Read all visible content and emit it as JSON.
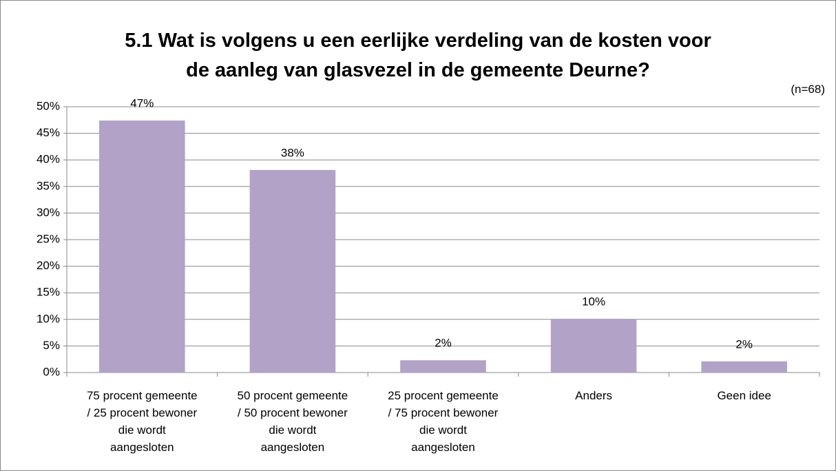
{
  "chart_data": {
    "type": "bar",
    "title": "5.1 Wat is volgens u een eerlijke verdeling van de kosten voor\nde aanleg van glasvezel in de gemeente Deurne?",
    "subtitle": "(n=68)",
    "categories": [
      "75 procent gemeente\n/ 25 procent bewoner\ndie wordt\naangesloten",
      "50 procent gemeente\n/ 50 procent bewoner\ndie wordt\naangesloten",
      "25 procent gemeente\n/ 75 procent bewoner\ndie wordt\naangesloten",
      "Anders",
      "Geen idee"
    ],
    "values": [
      47.4,
      38.1,
      2.3,
      10.1,
      2.1
    ],
    "value_labels": [
      "47%",
      "38%",
      "2%",
      "10%",
      "2%"
    ],
    "color": "#b2a2c7",
    "ylim": [
      0,
      50
    ],
    "yticks": [
      {
        "value": 0,
        "label": "0%"
      },
      {
        "value": 5,
        "label": "5%"
      },
      {
        "value": 10,
        "label": "10%"
      },
      {
        "value": 15,
        "label": "15%"
      },
      {
        "value": 20,
        "label": "20%"
      },
      {
        "value": 25,
        "label": "25%"
      },
      {
        "value": 30,
        "label": "30%"
      },
      {
        "value": 35,
        "label": "35%"
      },
      {
        "value": 40,
        "label": "40%"
      },
      {
        "value": 45,
        "label": "45%"
      },
      {
        "value": 50,
        "label": "50%"
      }
    ],
    "grid": true
  }
}
